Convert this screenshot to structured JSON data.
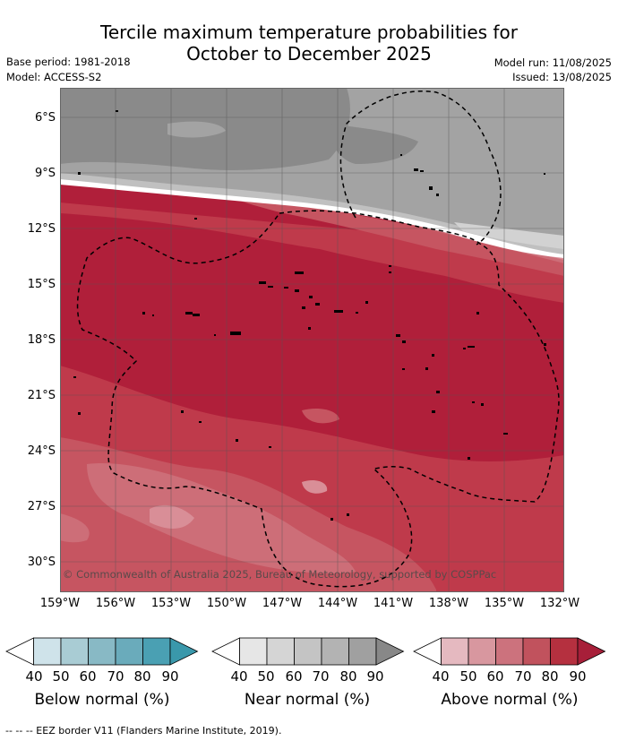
{
  "title": {
    "line1": "Tercile maximum temperature probabilities for",
    "line2": "October to December 2025"
  },
  "meta": {
    "base_period": "Base period: 1981-2018",
    "model": "Model: ACCESS-S2",
    "model_run": "Model run: 11/08/2025",
    "issued": "Issued: 13/08/2025"
  },
  "map": {
    "lat_labels": [
      "6°S",
      "9°S",
      "12°S",
      "15°S",
      "18°S",
      "21°S",
      "24°S",
      "27°S",
      "30°S"
    ],
    "lon_labels": [
      "159°W",
      "156°W",
      "153°W",
      "150°W",
      "147°W",
      "144°W",
      "141°W",
      "138°W",
      "135°W",
      "132°W"
    ],
    "copyright": "© Commonwealth of Australia 2025, Bureau of Meteorology, supported by COSPPac"
  },
  "colorbars": [
    {
      "name": "below",
      "label": "Below normal (%)",
      "ticks": [
        "40",
        "50",
        "60",
        "70",
        "80",
        "90"
      ],
      "colors": [
        "#ffffff",
        "#cfe3ea",
        "#a9ccd4",
        "#88b9c5",
        "#6aabbb",
        "#4aa0b3",
        "#3a98ab"
      ]
    },
    {
      "name": "near",
      "label": "Near normal (%)",
      "ticks": [
        "40",
        "50",
        "60",
        "70",
        "80",
        "90"
      ],
      "colors": [
        "#ffffff",
        "#e6e6e6",
        "#d5d5d5",
        "#c4c4c4",
        "#b3b3b3",
        "#a0a0a0",
        "#888888"
      ]
    },
    {
      "name": "above",
      "label": "Above normal (%)",
      "ticks": [
        "40",
        "50",
        "60",
        "70",
        "80",
        "90"
      ],
      "colors": [
        "#ffffff",
        "#e5b9c0",
        "#d8979f",
        "#cc727d",
        "#c1525d",
        "#b5303f",
        "#a71f39"
      ]
    }
  ],
  "footer": "--  --  -- EEZ border V11 (Flanders Marine Institute, 2019)."
}
